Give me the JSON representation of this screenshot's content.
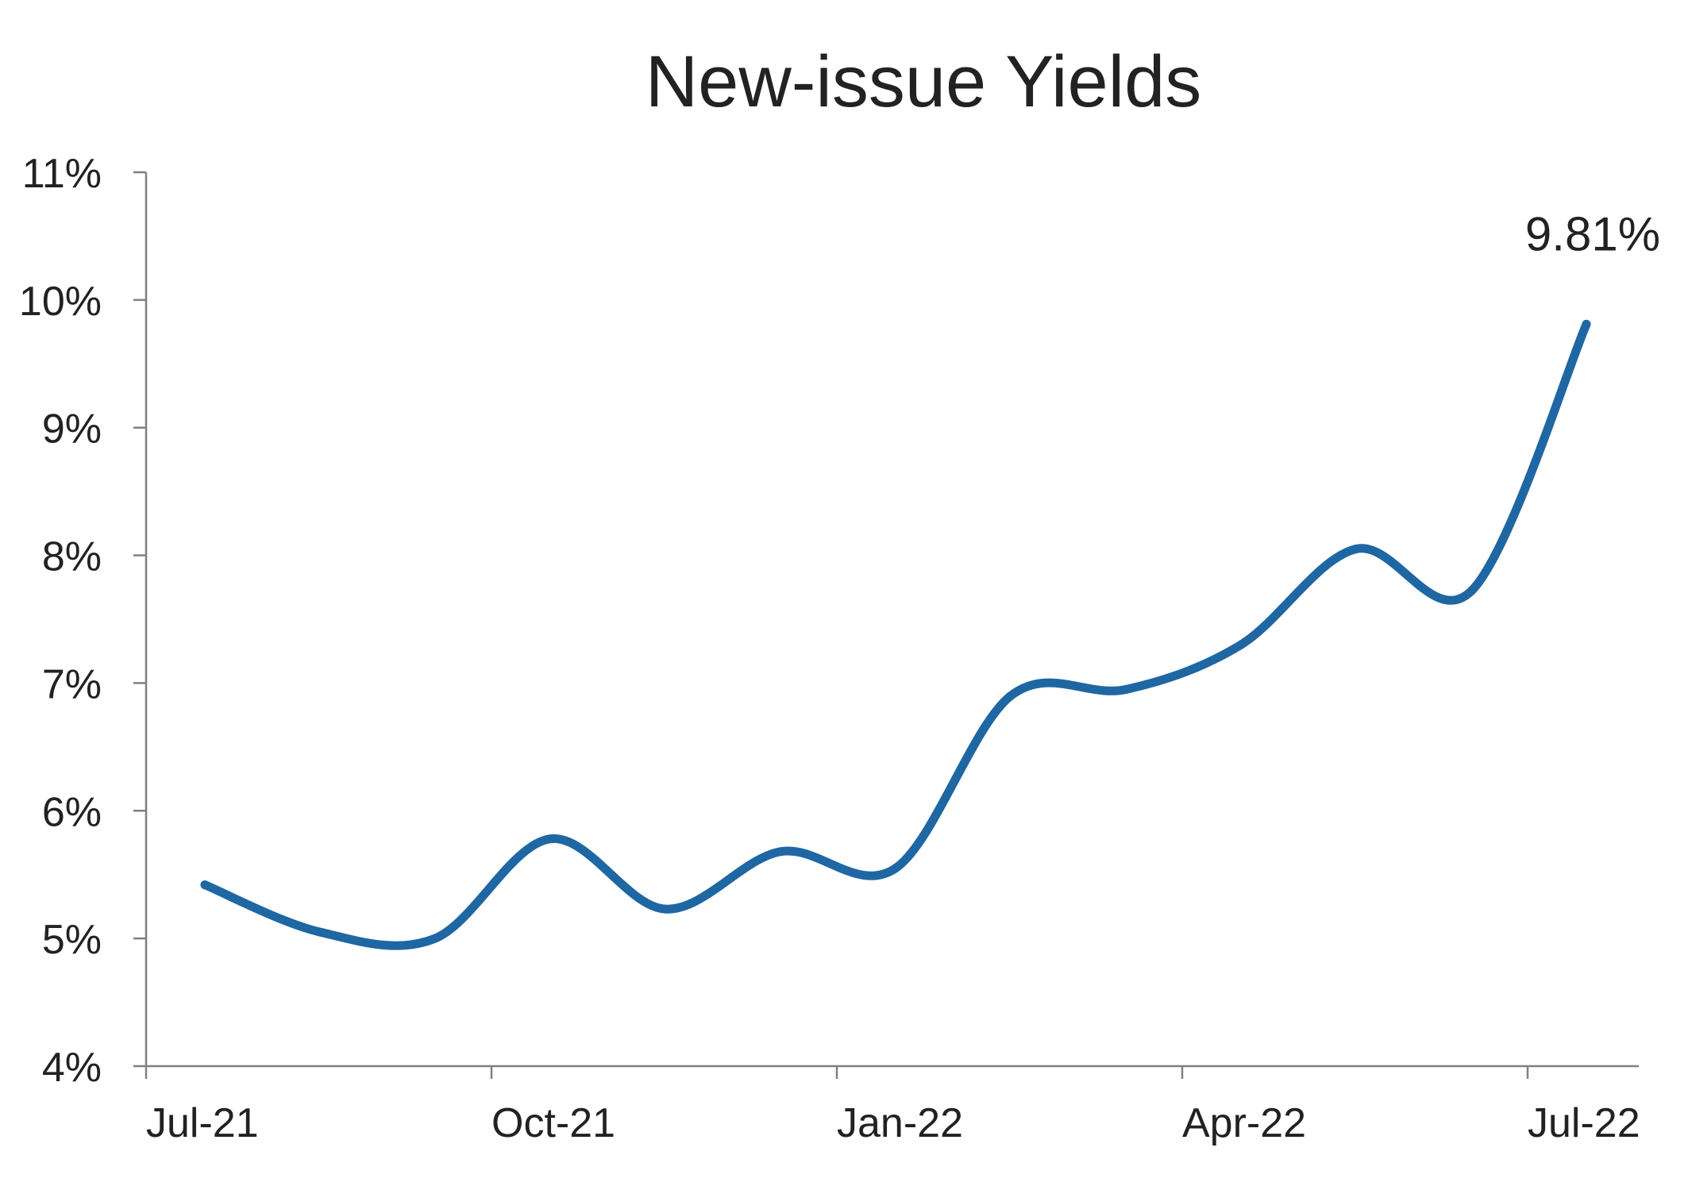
{
  "chart_data": {
    "type": "line",
    "title": "New-issue Yields",
    "xlabel": "",
    "ylabel": "",
    "x_tick_labels": [
      "Jul-21",
      "Oct-21",
      "Jan-22",
      "Apr-22",
      "Jul-22"
    ],
    "y_tick_labels": [
      "4%",
      "5%",
      "6%",
      "7%",
      "8%",
      "9%",
      "10%",
      "11%"
    ],
    "ylim": [
      4,
      11
    ],
    "y_unit": "%",
    "grid": false,
    "legend": "none",
    "x": [
      "Jul-21",
      "Aug-21",
      "Sep-21",
      "Oct-21",
      "Nov-21",
      "Dec-21",
      "Jan-22",
      "Feb-22",
      "Mar-22",
      "Apr-22",
      "May-22",
      "Jun-22",
      "Jul-22"
    ],
    "series": [
      {
        "values": [
          5.42,
          5.05,
          5.0,
          5.78,
          5.23,
          5.68,
          5.55,
          6.9,
          6.95,
          7.3,
          8.05,
          7.72,
          9.81
        ],
        "color": "#1f67a3"
      }
    ],
    "annotations": [
      {
        "text": "9.81%",
        "x": "Jul-22",
        "y": 9.81
      }
    ]
  }
}
